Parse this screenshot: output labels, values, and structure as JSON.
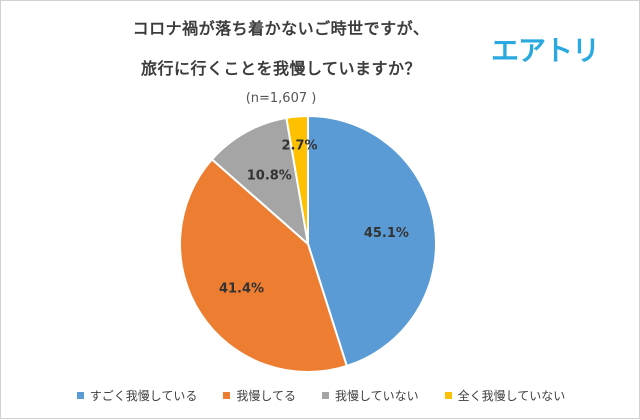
{
  "chart_data": {
    "type": "pie",
    "title_line1": "コロナ禍が落ち着かないご時世ですが、",
    "title_line2": "旅行に行くことを我慢していますか？",
    "subtitle": "(n=1,607 )",
    "categories": [
      "すごく我慢している",
      "我慢してる",
      "我慢していない",
      "全く我慢していない"
    ],
    "values": [
      45.1,
      41.4,
      10.8,
      2.7
    ],
    "value_labels": [
      "45.1%",
      "41.4%",
      "10.8%",
      "2.7%"
    ],
    "colors": [
      "#5b9bd5",
      "#ed7d31",
      "#a5a5a5",
      "#ffc000"
    ],
    "start": "12 o'clock",
    "direction": "clockwise",
    "legend_position": "bottom"
  },
  "brand": {
    "logo_text": "エアトリ"
  }
}
